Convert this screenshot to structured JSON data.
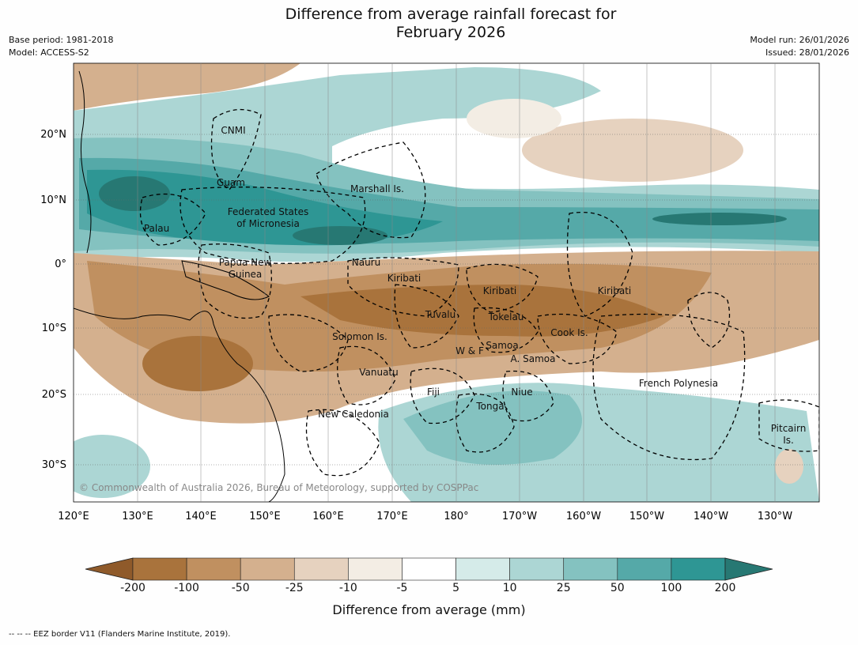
{
  "header": {
    "title_line1": "Difference from average rainfall forecast for",
    "title_line2": "February 2026",
    "base_period": "Base period: 1981-2018",
    "model": "Model: ACCESS-S2",
    "model_run": "Model run: 26/01/2026",
    "issued": "Issued: 28/01/2026"
  },
  "map": {
    "lat_labels": [
      "20°N",
      "10°N",
      "0°",
      "10°S",
      "20°S",
      "30°S"
    ],
    "lon_labels": [
      "120°E",
      "130°E",
      "140°E",
      "150°E",
      "160°E",
      "170°E",
      "180°",
      "170°W",
      "160°W",
      "150°W",
      "140°W",
      "130°W"
    ],
    "regions": [
      "CNMI",
      "Guam",
      "Marshall Is.",
      "Federated States",
      "of Micronesia",
      "Palau",
      "Papua New",
      "Guinea",
      "Nauru",
      "Kiribati",
      "Kiribati",
      "Kiribati",
      "Tuvalu",
      "Tokelau",
      "Cook Is.",
      "Solomon Is.",
      "W & F",
      "Samoa",
      "A. Samoa",
      "Vanuatu",
      "Fiji",
      "Niue",
      "Tonga",
      "French Polynesia",
      "New Caledonia",
      "Pitcairn",
      "Is."
    ],
    "copyright": "© Commonwealth of Australia 2026, Bureau of Meteorology, supported by COSPPac"
  },
  "colorbar": {
    "title": "Difference from average (mm)",
    "tick_labels": [
      "-200",
      "-100",
      "-50",
      "-25",
      "-10",
      "-5",
      "5",
      "10",
      "25",
      "50",
      "100",
      "200"
    ],
    "colors": [
      "#8f5a2a",
      "#a9733c",
      "#c09060",
      "#d4b08e",
      "#e6d2bf",
      "#f3ede4",
      "#ffffff",
      "#d5ebe9",
      "#acd6d4",
      "#84c2c0",
      "#55a9a8",
      "#2e9694",
      "#277873"
    ]
  },
  "footnote": "--  --  -- EEZ border V11 (Flanders Marine Institute, 2019)."
}
